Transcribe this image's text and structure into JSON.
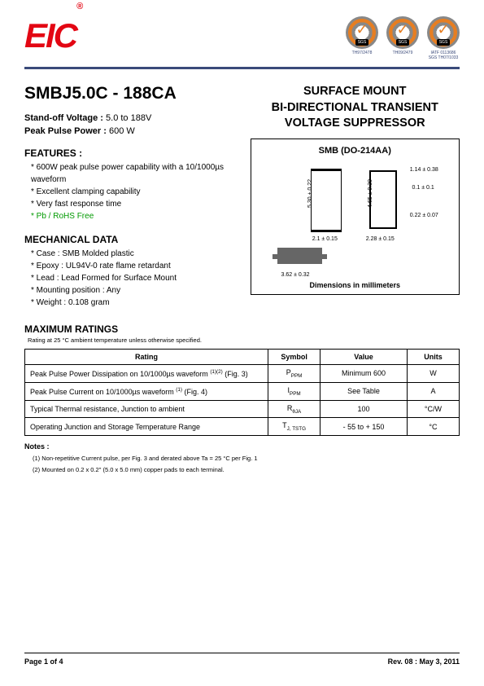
{
  "header": {
    "logo_text": "EIC",
    "certs": [
      {
        "sgs": "SGS",
        "label": "TH97/2478"
      },
      {
        "sgs": "SGS",
        "label": "TH09/2479"
      },
      {
        "sgs": "SGS",
        "label": "IATF 0113686\nSGS TH07/1033"
      }
    ]
  },
  "part_number": "SMBJ5.0C - 188CA",
  "standoff": {
    "label": "Stand-off Voltage :",
    "value": "5.0 to 188V"
  },
  "peak_power": {
    "label": "Peak Pulse Power :",
    "value": "600 W"
  },
  "features_title": "FEATURES :",
  "features": [
    "600W peak pulse power capability with a 10/1000µs waveform",
    "Excellent clamping capability",
    "Very fast response time",
    "Pb / RoHS Free"
  ],
  "mech_title": "MECHANICAL DATA",
  "mech": [
    "Case : SMB Molded plastic",
    "Epoxy : UL94V-0 rate flame retardant",
    "Lead : Lead Formed for Surface Mount",
    "Mounting position : Any",
    "Weight :  0.108 gram"
  ],
  "product_title": "SURFACE MOUNT\nBI-DIRECTIONAL TRANSIENT\nVOLTAGE SUPPRESSOR",
  "package": {
    "title": "SMB (DO-214AA)",
    "dims_caption": "Dimensions in millimeters",
    "dims": {
      "h1": "5.30 ± 0.22",
      "h2": "4.65 ± 0.30",
      "w1": "2.1 ± 0.15",
      "w2": "2.28 ±  0.15",
      "w3": "3.62 ± 0.32",
      "t1": "1.14 ± 0.38",
      "t2": "0.1 ± 0.1",
      "t3": "0.22 ± 0.07"
    }
  },
  "max_ratings": {
    "title": "MAXIMUM RATINGS",
    "note": "Rating at 25 °C ambient temperature unless otherwise specified.",
    "columns": [
      "Rating",
      "Symbol",
      "Value",
      "Units"
    ],
    "rows": [
      {
        "rating": "Peak Pulse Power Dissipation on 10/1000µs waveform (1)(2) (Fig. 3)",
        "symbol": "P",
        "sub": "PPM",
        "value": "Minimum 600",
        "units": "W"
      },
      {
        "rating": "Peak Pulse Current on 10/1000µs waveform (1) (Fig. 4)",
        "symbol": "I",
        "sub": "PPM",
        "value": "See Table",
        "units": "A"
      },
      {
        "rating": "Typical Thermal resistance, Junction to ambient",
        "symbol": "R",
        "sub": "θJA",
        "value": "100",
        "units": "°C/W"
      },
      {
        "rating": "Operating Junction and Storage Temperature Range",
        "symbol": "T",
        "sub": "J, TSTG",
        "value": "- 55 to + 150",
        "units": "°C"
      }
    ]
  },
  "notes": {
    "title": "Notes :",
    "items": [
      "(1) Non-repetitive Current pulse, per Fig. 3 and derated above Ta = 25 °C per Fig. 1",
      "(2) Mounted on 0.2 x 0.2\" (5.0 x 5.0 mm) copper pads to each terminal."
    ]
  },
  "footer": {
    "page": "Page 1 of 4",
    "rev": "Rev. 08 : May 3, 2011"
  },
  "colors": {
    "brand_red": "#e30613",
    "divider_blue": "#3a4a7a",
    "rohs_green": "#009900",
    "cert_orange": "#e67e22"
  }
}
